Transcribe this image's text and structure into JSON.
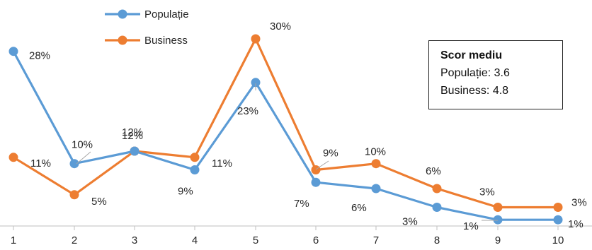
{
  "chart_data": {
    "type": "line",
    "x": [
      "1",
      "2",
      "3",
      "4",
      "5",
      "6",
      "7",
      "8",
      "9",
      "10"
    ],
    "series": [
      {
        "name": "Populație",
        "color": "#5B9BD5",
        "values": [
          28,
          10,
          12,
          9,
          23,
          7,
          6,
          3,
          1,
          1
        ],
        "labels": [
          "28%",
          "10%",
          "12%",
          "9%",
          "23%",
          "7%",
          "6%",
          "3%",
          "1%",
          "1%"
        ]
      },
      {
        "name": "Business",
        "color": "#ED7D31",
        "values": [
          11,
          5,
          12,
          11,
          30,
          9,
          10,
          6,
          3,
          3
        ],
        "labels": [
          "11%",
          "5%",
          "12%",
          "11%",
          "30%",
          "9%",
          "10%",
          "6%",
          "3%",
          "3%"
        ]
      }
    ],
    "ylim": [
      0,
      30
    ],
    "grid": false,
    "legend": "top-left"
  },
  "score_box": {
    "title": "Scor mediu",
    "rows": [
      "Populație: 3.6",
      "Business: 4.8"
    ]
  }
}
